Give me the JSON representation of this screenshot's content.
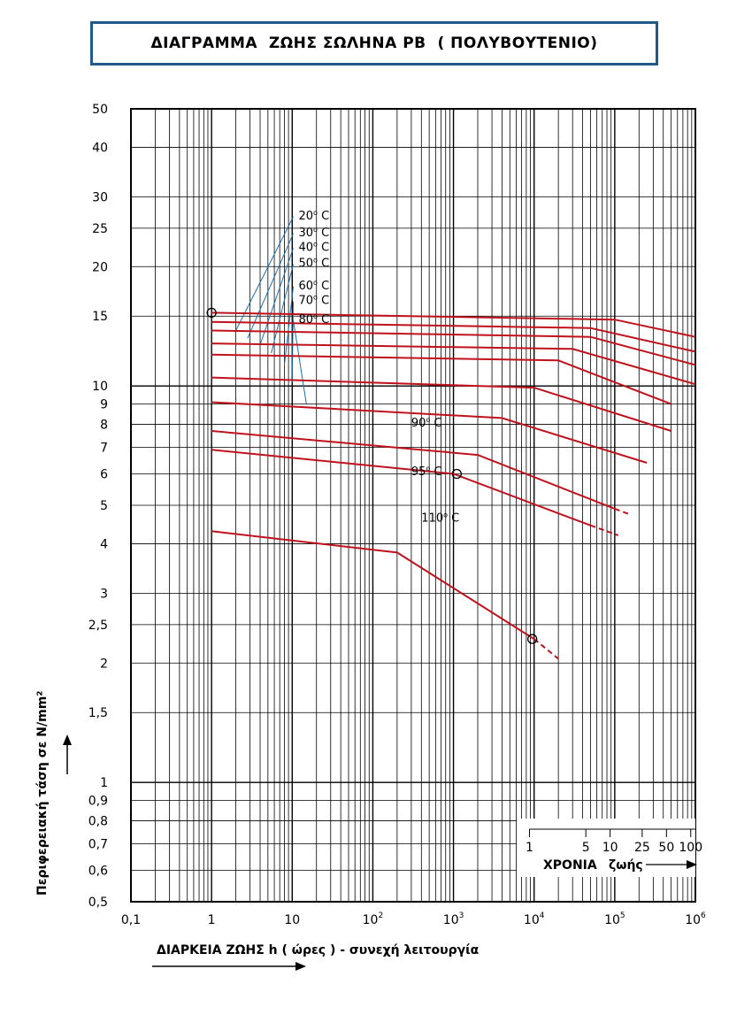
{
  "title": {
    "text": "ΔΙΑΓΡΑΜΜΑ  ΖΩΗΣ ΣΩΛΗΝΑ",
    "material": "PB",
    "suffix": "( ΠΟΛΥΒΟΥΤΕΝΙΟ)"
  },
  "colors": {
    "title_border": "#1f5a8a",
    "curves": "#c0121c",
    "leaders": "#1c6fb0",
    "grid": "#000000"
  },
  "chart_data": {
    "type": "line",
    "x_scale": "log",
    "y_scale": "log",
    "xlim": [
      0.1,
      1000000
    ],
    "ylim": [
      0.5,
      50
    ],
    "xlabel": "ΔΙΑΡΚΕΙΑ ΖΩΗΣ  h ( ώρες ) -   συνεχή  λειτουργία",
    "ylabel": "Περιφερειακή τάση σε N/mm²",
    "x_ticks": [
      {
        "value": 0.1,
        "label": "0,1",
        "sup": ""
      },
      {
        "value": 1,
        "label": "1",
        "sup": ""
      },
      {
        "value": 10,
        "label": "10",
        "sup": ""
      },
      {
        "value": 100,
        "label": "10",
        "sup": "2"
      },
      {
        "value": 1000,
        "label": "10",
        "sup": "3"
      },
      {
        "value": 10000,
        "label": "10",
        "sup": "4"
      },
      {
        "value": 100000,
        "label": "10",
        "sup": "5"
      },
      {
        "value": 1000000,
        "label": "10",
        "sup": "6"
      }
    ],
    "y_ticks": [
      {
        "value": 50,
        "label": "50"
      },
      {
        "value": 40,
        "label": "40"
      },
      {
        "value": 30,
        "label": "30"
      },
      {
        "value": 25,
        "label": "25"
      },
      {
        "value": 20,
        "label": "20"
      },
      {
        "value": 15,
        "label": "15"
      },
      {
        "value": 10,
        "label": "10"
      },
      {
        "value": 9,
        "label": "9"
      },
      {
        "value": 8,
        "label": "8"
      },
      {
        "value": 7,
        "label": "7"
      },
      {
        "value": 6,
        "label": "6"
      },
      {
        "value": 5,
        "label": "5"
      },
      {
        "value": 4,
        "label": "4"
      },
      {
        "value": 3,
        "label": "3"
      },
      {
        "value": 2.5,
        "label": "2,5"
      },
      {
        "value": 2,
        "label": "2"
      },
      {
        "value": 1.5,
        "label": "1,5"
      },
      {
        "value": 1,
        "label": "1"
      },
      {
        "value": 0.9,
        "label": "0,9"
      },
      {
        "value": 0.8,
        "label": "0,8"
      },
      {
        "value": 0.7,
        "label": "0,7"
      },
      {
        "value": 0.6,
        "label": "0,6"
      },
      {
        "value": 0.5,
        "label": "0,5"
      }
    ],
    "years_axis": {
      "label_a": "ΧΡΟΝΙΑ",
      "label_b": "ζωής",
      "ticks": [
        {
          "value": 8760,
          "label": "1"
        },
        {
          "value": 43800,
          "label": "5"
        },
        {
          "value": 87600,
          "label": "10"
        },
        {
          "value": 219000,
          "label": "25"
        },
        {
          "value": 438000,
          "label": "50"
        },
        {
          "value": 876000,
          "label": "100"
        }
      ]
    },
    "series": [
      {
        "name": "20° C",
        "points": [
          [
            1,
            15.3
          ],
          [
            100000,
            14.7
          ],
          [
            1000000,
            13.3
          ]
        ],
        "dashed_to": null
      },
      {
        "name": "30° C",
        "points": [
          [
            1,
            14.5
          ],
          [
            50000,
            14.0
          ],
          [
            1000000,
            12.2
          ]
        ],
        "dashed_to": null
      },
      {
        "name": "40° C",
        "points": [
          [
            1,
            13.8
          ],
          [
            50000,
            13.3
          ],
          [
            1000000,
            11.3
          ]
        ],
        "dashed_to": null
      },
      {
        "name": "50° C",
        "points": [
          [
            1,
            12.8
          ],
          [
            30000,
            12.4
          ],
          [
            1000000,
            10.1
          ]
        ],
        "dashed_to": null
      },
      {
        "name": "60° C",
        "points": [
          [
            1,
            12.0
          ],
          [
            20000,
            11.6
          ],
          [
            500000,
            9.0
          ]
        ],
        "dashed_to": null
      },
      {
        "name": "70° C",
        "points": [
          [
            1,
            10.5
          ],
          [
            10000,
            9.9
          ],
          [
            500000,
            7.7
          ]
        ],
        "dashed_to": null
      },
      {
        "name": "80° C",
        "points": [
          [
            1,
            9.1
          ],
          [
            4000,
            8.3
          ],
          [
            250000,
            6.4
          ]
        ],
        "dashed_to": null
      },
      {
        "name": "90° C",
        "points": [
          [
            1,
            7.7
          ],
          [
            2000,
            6.7
          ],
          [
            100000,
            4.9
          ]
        ],
        "dashed_to": [
          150000,
          4.75
        ]
      },
      {
        "name": "95° C",
        "points": [
          [
            1,
            6.9
          ],
          [
            1000,
            6.0
          ],
          [
            50000,
            4.45
          ]
        ],
        "dashed_to": [
          110000,
          4.2
        ]
      },
      {
        "name": "110° C",
        "points": [
          [
            1,
            4.3
          ],
          [
            200,
            3.8
          ],
          [
            10000,
            2.3
          ]
        ],
        "dashed_to": [
          20000,
          2.05
        ]
      }
    ],
    "markers": [
      [
        1,
        15.3
      ],
      [
        1100,
        6.0
      ],
      [
        9500,
        2.3
      ]
    ],
    "labels": [
      {
        "series": "20° C",
        "at": [
          12,
          27
        ],
        "leader_to": [
          2,
          13.8
        ]
      },
      {
        "series": "30° C",
        "at": [
          12,
          24.5
        ],
        "leader_to": [
          2.8,
          13.2
        ]
      },
      {
        "series": "40° C",
        "at": [
          12,
          22.5
        ],
        "leader_to": [
          4,
          12.7
        ]
      },
      {
        "series": "50° C",
        "at": [
          12,
          20.5
        ],
        "leader_to": [
          5.5,
          12.1
        ]
      },
      {
        "series": "60° C",
        "at": [
          12,
          18
        ],
        "leader_to": [
          8,
          11.3
        ]
      },
      {
        "series": "70° C",
        "at": [
          12,
          16.5
        ],
        "leader_to": [
          10,
          10.2
        ]
      },
      {
        "series": "80° C",
        "at": [
          12,
          14.8
        ],
        "leader_to": [
          15,
          9.0
        ]
      }
    ]
  }
}
